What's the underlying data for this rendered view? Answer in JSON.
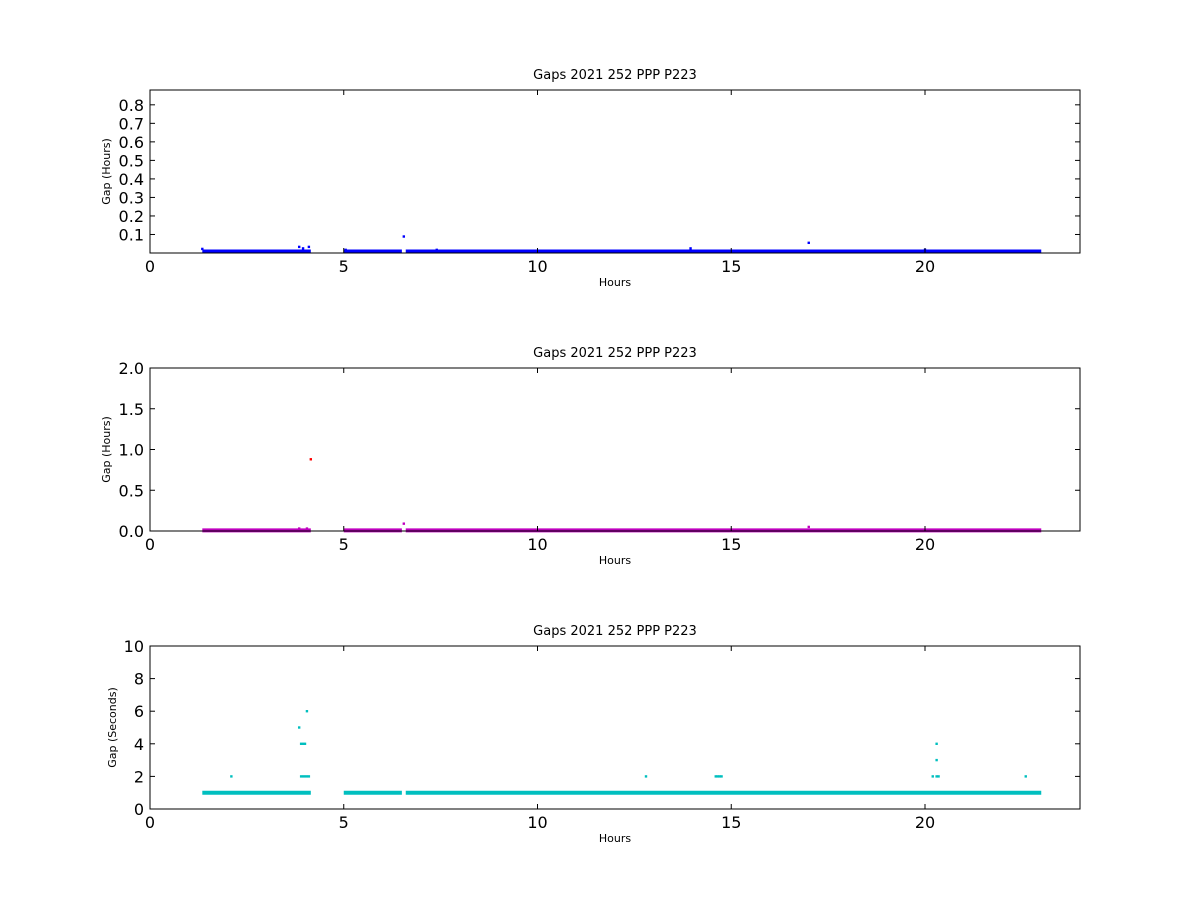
{
  "chart_data": [
    {
      "type": "scatter",
      "title": "Gaps 2021 252 PPP  P223",
      "xlabel": "Hours",
      "ylabel": "Gap (Hours)",
      "xlim": [
        0,
        24
      ],
      "ylim": [
        0,
        0.88
      ],
      "xticks": [
        "0",
        "5",
        "10",
        "15",
        "20"
      ],
      "yticks": [
        "0.1",
        "0.2",
        "0.3",
        "0.4",
        "0.5",
        "0.6",
        "0.7",
        "0.8"
      ],
      "color": "#0000ff",
      "baseline": {
        "y": 0.0083,
        "segments": [
          [
            1.35,
            4.15
          ],
          [
            5.0,
            6.5
          ],
          [
            6.6,
            23.0
          ]
        ]
      },
      "points": [
        [
          1.35,
          0.022
        ],
        [
          3.85,
          0.033
        ],
        [
          3.95,
          0.025
        ],
        [
          4.1,
          0.033
        ],
        [
          5.05,
          0.017
        ],
        [
          6.55,
          0.089
        ],
        [
          7.4,
          0.017
        ],
        [
          13.95,
          0.025
        ],
        [
          17.0,
          0.055
        ],
        [
          20.0,
          0.017
        ]
      ]
    },
    {
      "type": "scatter",
      "title": "Gaps 2021 252 PPP  P223",
      "xlabel": "Hours",
      "ylabel": "Gap (Hours)",
      "xlim": [
        0,
        24
      ],
      "ylim": [
        0,
        2.0
      ],
      "xticks": [
        "0",
        "5",
        "10",
        "15",
        "20"
      ],
      "yticks": [
        "0.0",
        "0.5",
        "1.0",
        "1.5",
        "2.0"
      ],
      "color": "#bf00bf",
      "baseline": {
        "y": 0.0083,
        "segments": [
          [
            1.35,
            4.15
          ],
          [
            5.0,
            6.5
          ],
          [
            6.6,
            23.0
          ]
        ]
      },
      "points": [
        [
          3.85,
          0.03
        ],
        [
          4.05,
          0.03
        ],
        [
          6.55,
          0.09
        ],
        [
          17.0,
          0.05
        ]
      ],
      "outliers": {
        "color": "#ff0000",
        "points": [
          [
            4.15,
            0.88
          ]
        ]
      }
    },
    {
      "type": "scatter",
      "title": "Gaps 2021 252 PPP  P223",
      "xlabel": "Hours",
      "ylabel": "Gap (Seconds)",
      "xlim": [
        0,
        24
      ],
      "ylim": [
        0,
        10
      ],
      "xticks": [
        "0",
        "5",
        "10",
        "15",
        "20"
      ],
      "yticks": [
        "0",
        "2",
        "4",
        "6",
        "8",
        "10"
      ],
      "color": "#00bfbf",
      "baseline": {
        "y": 1,
        "segments": [
          [
            1.35,
            4.15
          ],
          [
            5.0,
            6.5
          ],
          [
            6.6,
            23.0
          ]
        ]
      },
      "points": [
        [
          2.1,
          2
        ],
        [
          3.85,
          5
        ],
        [
          3.9,
          4
        ],
        [
          3.95,
          4
        ],
        [
          4.0,
          4
        ],
        [
          3.9,
          2
        ],
        [
          3.95,
          2
        ],
        [
          4.0,
          2
        ],
        [
          4.05,
          2
        ],
        [
          4.1,
          2
        ],
        [
          4.05,
          6
        ],
        [
          12.8,
          2
        ],
        [
          14.6,
          2
        ],
        [
          14.65,
          2
        ],
        [
          14.7,
          2
        ],
        [
          14.75,
          2
        ],
        [
          20.2,
          2
        ],
        [
          20.3,
          2
        ],
        [
          20.35,
          2
        ],
        [
          20.3,
          4
        ],
        [
          20.3,
          3
        ],
        [
          22.6,
          2
        ]
      ]
    }
  ]
}
